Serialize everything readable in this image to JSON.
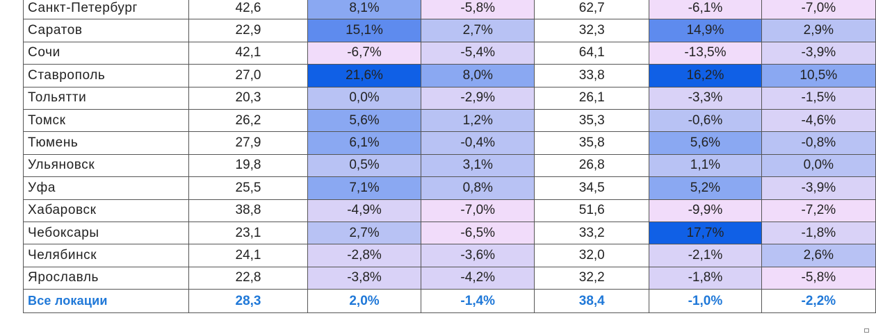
{
  "rows": [
    {
      "city": "Санкт-Петербург",
      "v1": "42,6",
      "p1": "8,1%",
      "p2": "-5,8%",
      "v2": "62,7",
      "p3": "-6,1%",
      "p4": "-7,0%"
    },
    {
      "city": "Саратов",
      "v1": "22,9",
      "p1": "15,1%",
      "p2": "2,7%",
      "v2": "32,3",
      "p3": "14,9%",
      "p4": "2,9%"
    },
    {
      "city": "Сочи",
      "v1": "42,1",
      "p1": "-6,7%",
      "p2": "-5,4%",
      "v2": "64,1",
      "p3": "-13,5%",
      "p4": "-3,9%"
    },
    {
      "city": "Ставрополь",
      "v1": "27,0",
      "p1": "21,6%",
      "p2": "8,0%",
      "v2": "33,8",
      "p3": "16,2%",
      "p4": "10,5%"
    },
    {
      "city": "Тольятти",
      "v1": "20,3",
      "p1": "0,0%",
      "p2": "-2,9%",
      "v2": "26,1",
      "p3": "-3,3%",
      "p4": "-1,5%"
    },
    {
      "city": "Томск",
      "v1": "26,2",
      "p1": "5,6%",
      "p2": "1,2%",
      "v2": "35,3",
      "p3": "-0,6%",
      "p4": "-4,6%"
    },
    {
      "city": "Тюмень",
      "v1": "27,9",
      "p1": "6,1%",
      "p2": "-0,4%",
      "v2": "35,8",
      "p3": "5,6%",
      "p4": "-0,8%"
    },
    {
      "city": "Ульяновск",
      "v1": "19,8",
      "p1": "0,5%",
      "p2": "3,1%",
      "v2": "26,8",
      "p3": "1,1%",
      "p4": "0,0%"
    },
    {
      "city": "Уфа",
      "v1": "25,5",
      "p1": "7,1%",
      "p2": "0,8%",
      "v2": "34,5",
      "p3": "5,2%",
      "p4": "-3,9%"
    },
    {
      "city": "Хабаровск",
      "v1": "38,8",
      "p1": "-4,9%",
      "p2": "-7,0%",
      "v2": "51,6",
      "p3": "-9,9%",
      "p4": "-7,2%"
    },
    {
      "city": "Чебоксары",
      "v1": "23,1",
      "p1": "2,7%",
      "p2": "-6,5%",
      "v2": "33,2",
      "p3": "17,7%",
      "p4": "-1,8%"
    },
    {
      "city": "Челябинск",
      "v1": "24,1",
      "p1": "-2,8%",
      "p2": "-3,6%",
      "v2": "32,0",
      "p3": "-2,1%",
      "p4": "2,6%"
    },
    {
      "city": "Ярославль",
      "v1": "22,8",
      "p1": "-3,8%",
      "p2": "-4,2%",
      "v2": "32,2",
      "p3": "-1,8%",
      "p4": "-5,8%"
    }
  ],
  "total": {
    "city": "Все локации",
    "v1": "28,3",
    "p1": "2,0%",
    "p2": "-1,4%",
    "v2": "38,4",
    "p3": "-1,0%",
    "p4": "-2,2%"
  },
  "heat_colors": {
    "negative_light": "#f1dcfa",
    "negative_mid": "#d9d2f7",
    "neutral": "#b8c2f4",
    "positive_mid": "#8aa8f2",
    "positive_strong": "#5e8bee",
    "positive_max": "#1060e6"
  },
  "total_text_color": "#1f78d8"
}
